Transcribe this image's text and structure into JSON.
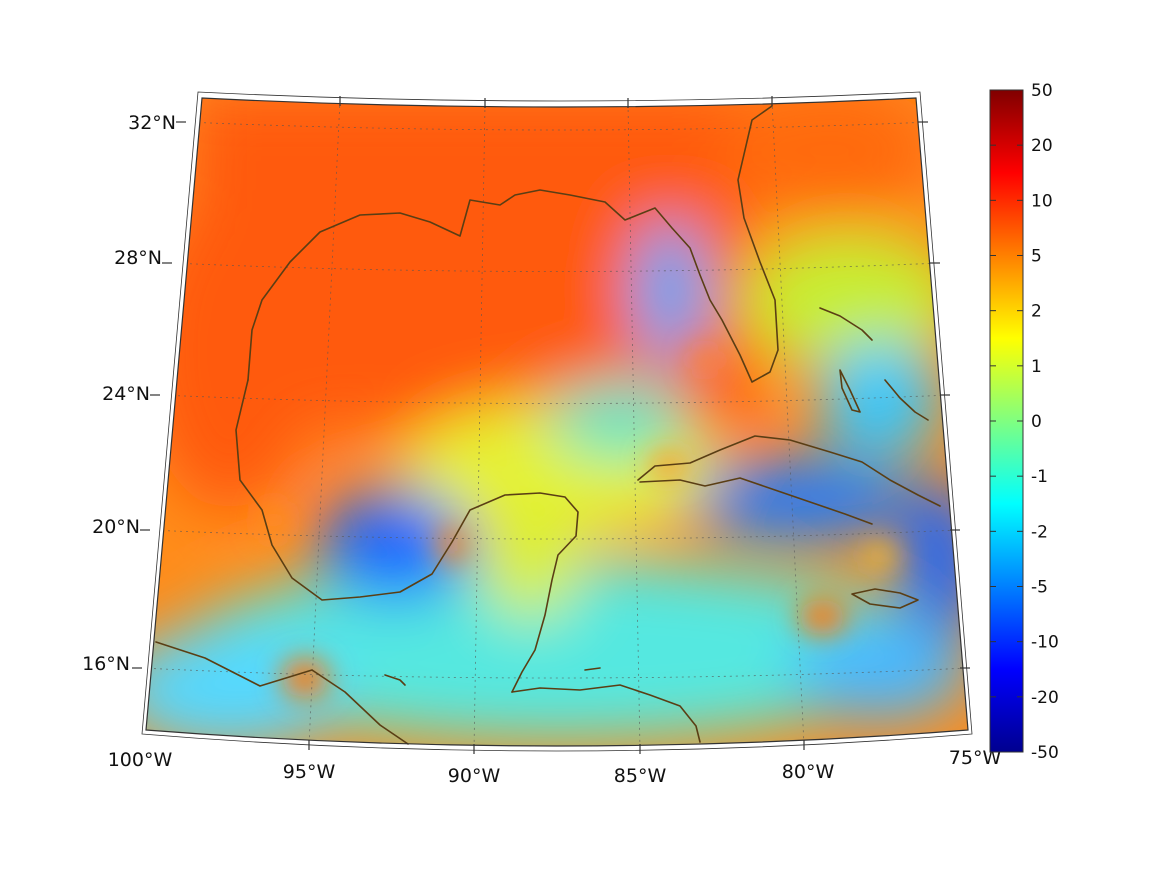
{
  "map": {
    "projection": "conic",
    "lon_range": [
      -100,
      -75
    ],
    "lat_range": [
      14,
      33
    ],
    "lat_ticks": [
      {
        "value": 32,
        "label": "32°N"
      },
      {
        "value": 28,
        "label": "28°N"
      },
      {
        "value": 24,
        "label": "24°N"
      },
      {
        "value": 20,
        "label": "20°N"
      },
      {
        "value": 16,
        "label": "16°N"
      }
    ],
    "lon_ticks": [
      {
        "value": -100,
        "label": "100°W"
      },
      {
        "value": -95,
        "label": "95°W"
      },
      {
        "value": -90,
        "label": "90°W"
      },
      {
        "value": -85,
        "label": "85°W"
      },
      {
        "value": -80,
        "label": "80°W"
      },
      {
        "value": -75,
        "label": "75°W"
      }
    ],
    "coastline_color": "#5a3e14",
    "grid": "dotted"
  },
  "colorbar": {
    "colormap": "jet",
    "scale": "symlog",
    "range": [
      -50,
      50
    ],
    "ticks": [
      {
        "value": 50,
        "label": "50"
      },
      {
        "value": 20,
        "label": "20"
      },
      {
        "value": 10,
        "label": "10"
      },
      {
        "value": 5,
        "label": "5"
      },
      {
        "value": 2,
        "label": "2"
      },
      {
        "value": 1,
        "label": "1"
      },
      {
        "value": 0,
        "label": "0"
      },
      {
        "value": -1,
        "label": "-1"
      },
      {
        "value": -2,
        "label": "-2"
      },
      {
        "value": -5,
        "label": "-5"
      },
      {
        "value": -10,
        "label": "-10"
      },
      {
        "value": -20,
        "label": "-20"
      },
      {
        "value": -50,
        "label": "-50"
      }
    ],
    "stops": [
      "#00008f",
      "#0000ff",
      "#0080ff",
      "#00ffff",
      "#80ff80",
      "#ffff00",
      "#ff8000",
      "#ff0000",
      "#800000"
    ]
  },
  "field_colors": {
    "warm_north": "#ff5a0a",
    "warm_mid": "#ff8c1a",
    "neutral": "#e6f230",
    "cool": "#22d4f0",
    "cold": "#1a66ff"
  }
}
